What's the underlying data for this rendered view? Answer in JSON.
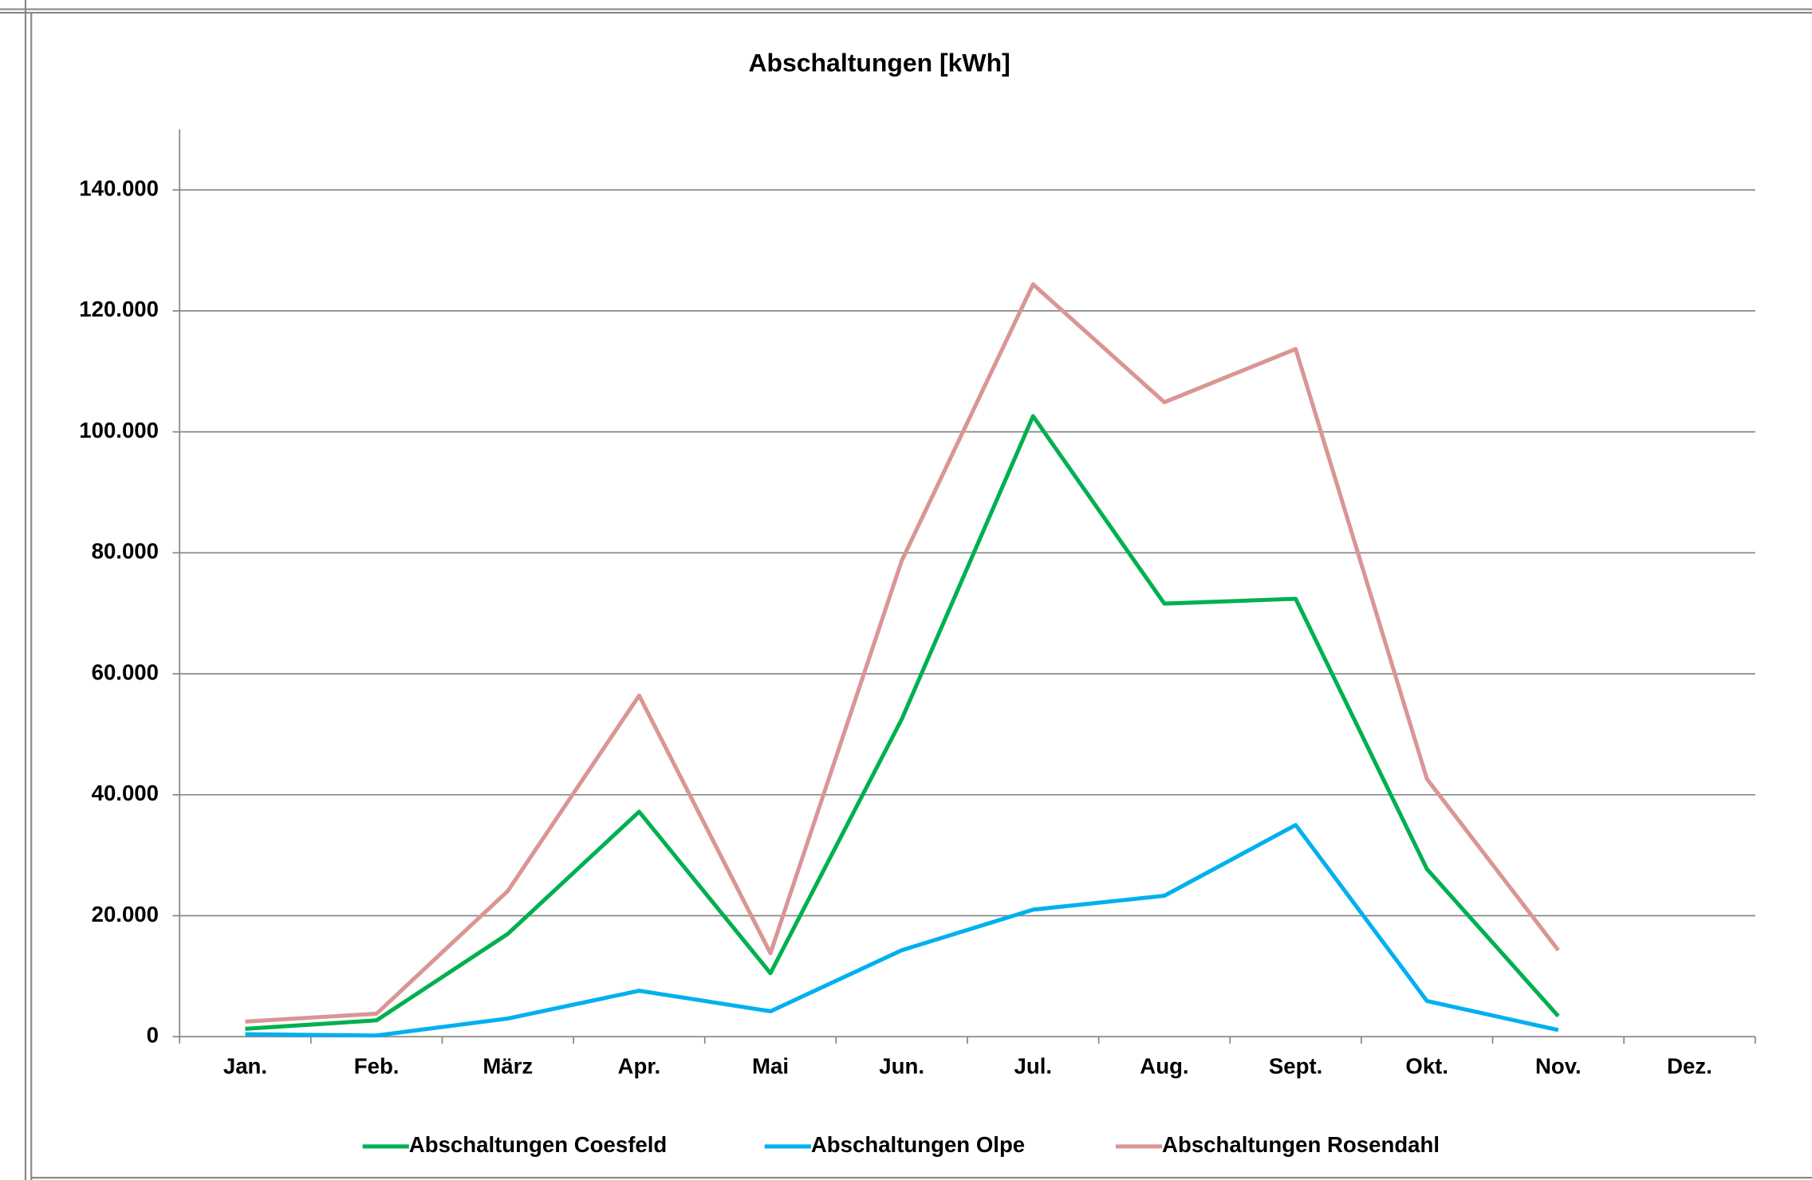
{
  "chart_data": {
    "type": "line",
    "title": "Abschaltungen [kWh]",
    "categories": [
      "Jan.",
      "Feb.",
      "März",
      "Apr.",
      "Mai",
      "Jun.",
      "Jul.",
      "Aug.",
      "Sept.",
      "Okt.",
      "Nov.",
      "Dez."
    ],
    "series": [
      {
        "name": "Abschaltungen Coesfeld",
        "color": "#00b050",
        "values": [
          1300,
          2700,
          17000,
          37200,
          10500,
          52500,
          102600,
          71600,
          72400,
          27700,
          3400,
          null
        ]
      },
      {
        "name": "Abschaltungen Olpe",
        "color": "#00b0f0",
        "values": [
          400,
          200,
          3000,
          7600,
          4200,
          14300,
          21000,
          23300,
          35000,
          5900,
          1100,
          null
        ]
      },
      {
        "name": "Abschaltungen Rosendahl",
        "color": "#d99694",
        "values": [
          2500,
          3800,
          24100,
          56400,
          13800,
          78700,
          124400,
          104900,
          113700,
          42600,
          14300,
          null
        ]
      }
    ],
    "ylim": [
      0,
      150000
    ],
    "yticks": [
      0,
      {
        "value": 20000,
        "label": "20.000"
      },
      {
        "value": 40000,
        "label": "40.000"
      },
      {
        "value": 60000,
        "label": "60.000"
      },
      {
        "value": 80000,
        "label": "80.000"
      },
      {
        "value": 100000,
        "label": "100.000"
      },
      {
        "value": 120000,
        "label": "120.000"
      },
      {
        "value": 140000,
        "label": "140.000"
      }
    ],
    "grid": true,
    "legend": "bottom"
  }
}
